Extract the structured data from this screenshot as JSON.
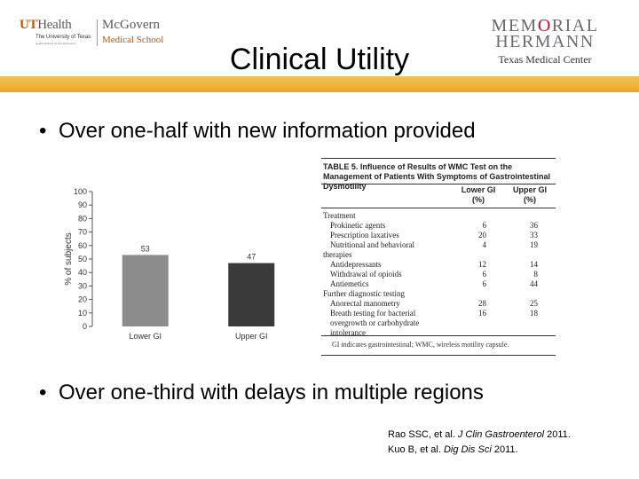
{
  "header": {
    "ut_logo": {
      "brand_ut": "UT",
      "brand_health": "Health",
      "tagline": "The University of Texas",
      "tagline_small": "Health Science Center at Houston",
      "school_name": "McGovern",
      "school_sub": "Medical School"
    },
    "mh_logo": {
      "line1_a": "MEM",
      "line1_o": "O",
      "line1_b": "RIAL",
      "line2": "HERMANN",
      "line3": "Texas Medical Center"
    }
  },
  "slide": {
    "title": "Clinical Utility",
    "bullets": [
      "Over one-half with new information provided",
      "Over one-third with delays in multiple regions"
    ],
    "references": [
      {
        "authors": "Rao SSC, et al. ",
        "journal": "J Clin Gastroenterol",
        "year": " 2011."
      },
      {
        "authors": "Kuo B, et al. ",
        "journal": "Dig Dis Sci",
        "year": " 2011."
      }
    ]
  },
  "colors": {
    "gold_bar": "#f0b438",
    "lower_gi_bar": "#8c8c8c",
    "upper_gi_bar": "#3a3a3a"
  },
  "chart_data": {
    "type": "bar",
    "categories": [
      "Lower GI",
      "Upper GI"
    ],
    "values": [
      53,
      47
    ],
    "data_labels": [
      "53",
      "47"
    ],
    "ylabel": "% of subjects",
    "xlabel": "",
    "ylim": [
      0,
      100
    ],
    "yticks": [
      0,
      10,
      20,
      30,
      40,
      50,
      60,
      70,
      80,
      90,
      100
    ],
    "grid": false
  },
  "table": {
    "caption": "TABLE 5.  Influence of Results of WMC Test on the Management of Patients With Symptoms of Gastrointestinal Dysmotility",
    "col1_header": "Lower GI",
    "col1_sub": "(%)",
    "col2_header": "Upper GI",
    "col2_sub": "(%)",
    "rows": [
      {
        "label": "Treatment",
        "v1": "",
        "v2": "",
        "indent": false
      },
      {
        "label": "Prokinetic agents",
        "v1": "6",
        "v2": "36",
        "indent": true
      },
      {
        "label": "Prescription laxatives",
        "v1": "20",
        "v2": "33",
        "indent": true
      },
      {
        "label": "Nutritional and behavioral",
        "v1": "4",
        "v2": "19",
        "indent": true
      },
      {
        "label": "therapies",
        "v1": "",
        "v2": "",
        "indent": false
      },
      {
        "label": "Antidepressants",
        "v1": "12",
        "v2": "14",
        "indent": true
      },
      {
        "label": "Withdrawal of opioids",
        "v1": "6",
        "v2": "8",
        "indent": true
      },
      {
        "label": "Antiemetics",
        "v1": "6",
        "v2": "44",
        "indent": true
      },
      {
        "label": "Further diagnostic testing",
        "v1": "",
        "v2": "",
        "indent": false
      },
      {
        "label": "Anorectal manometry",
        "v1": "28",
        "v2": "25",
        "indent": true
      },
      {
        "label": "Breath testing for bacterial",
        "v1": "16",
        "v2": "18",
        "indent": true
      },
      {
        "label": "overgrowth or carbohydrate",
        "v1": "",
        "v2": "",
        "indent": true
      },
      {
        "label": "intolerance",
        "v1": "",
        "v2": "",
        "indent": true
      }
    ],
    "footnote": "GI indicates gastrointestinal; WMC, wireless motility capsule."
  }
}
